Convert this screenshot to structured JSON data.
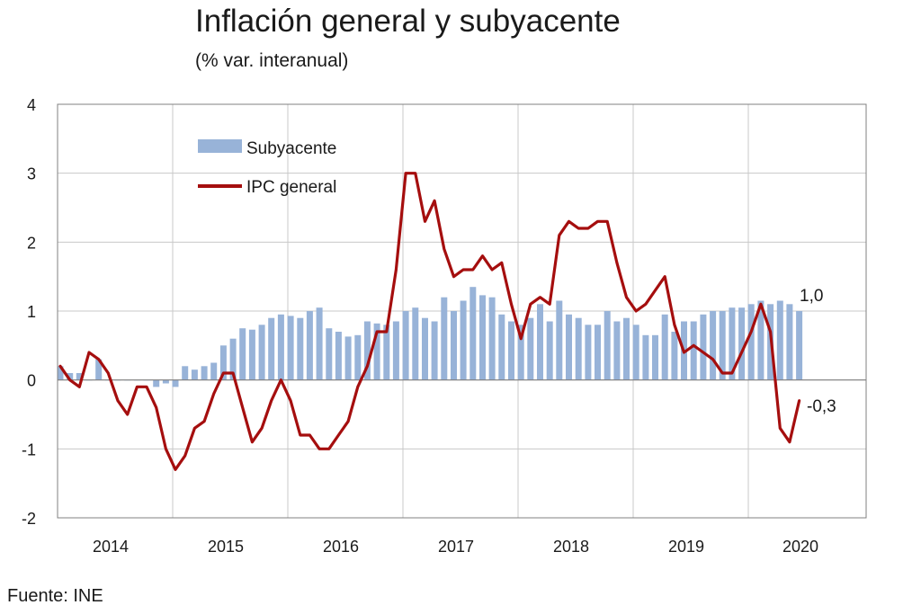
{
  "colors": {
    "bar": "#98b3d8",
    "line": "#a50e0e",
    "grid": "#c8c8c8",
    "axis": "#808080"
  },
  "chart_data": {
    "type": "bar+line",
    "title": "Inflación general y subyacente",
    "subtitle": "(% var. interanual)",
    "source": "Fuente: INE",
    "ylim": [
      -2,
      4
    ],
    "y_ticks": [
      "4",
      "3",
      "2",
      "1",
      "0",
      "-1",
      "-2"
    ],
    "x_tick_labels": [
      "2014",
      "2015",
      "2016",
      "2017",
      "2018",
      "2019",
      "2020"
    ],
    "grid": true,
    "legend_position": "top-left inside",
    "legend": {
      "bar_label": "Subyacente",
      "line_label": "IPC general"
    },
    "end_labels": {
      "bar": "1,0",
      "line": "-0,3"
    },
    "series": [
      {
        "name": "Subyacente",
        "type": "bar",
        "values": [
          0.2,
          0.1,
          0.1,
          0.0,
          0.3,
          0.0,
          0.0,
          0.0,
          0.0,
          0.0,
          -0.1,
          -0.05,
          -0.1,
          0.2,
          0.15,
          0.2,
          0.25,
          0.5,
          0.6,
          0.75,
          0.73,
          0.8,
          0.9,
          0.95,
          0.93,
          0.9,
          1.0,
          1.05,
          0.75,
          0.7,
          0.63,
          0.65,
          0.85,
          0.82,
          0.8,
          0.85,
          1.0,
          1.05,
          0.9,
          0.85,
          1.2,
          1.0,
          1.15,
          1.35,
          1.23,
          1.2,
          0.95,
          0.85,
          0.8,
          0.9,
          1.1,
          0.85,
          1.15,
          0.95,
          0.9,
          0.8,
          0.8,
          1.0,
          0.85,
          0.9,
          0.8,
          0.65,
          0.65,
          0.95,
          0.7,
          0.85,
          0.85,
          0.95,
          1.0,
          1.0,
          1.05,
          1.05,
          1.1,
          1.15,
          1.1,
          1.15,
          1.1,
          1.0
        ]
      },
      {
        "name": "IPC general",
        "type": "line",
        "values": [
          0.2,
          0.0,
          -0.1,
          0.4,
          0.3,
          0.1,
          -0.3,
          -0.5,
          -0.1,
          -0.1,
          -0.4,
          -1.0,
          -1.3,
          -1.1,
          -0.7,
          -0.6,
          -0.2,
          0.1,
          0.1,
          -0.4,
          -0.9,
          -0.7,
          -0.3,
          0.0,
          -0.3,
          -0.8,
          -0.8,
          -1.0,
          -1.0,
          -0.8,
          -0.6,
          -0.1,
          0.2,
          0.7,
          0.7,
          1.6,
          3.0,
          3.0,
          2.3,
          2.6,
          1.9,
          1.5,
          1.6,
          1.6,
          1.8,
          1.6,
          1.7,
          1.1,
          0.6,
          1.1,
          1.2,
          1.1,
          2.1,
          2.3,
          2.2,
          2.2,
          2.3,
          2.3,
          1.7,
          1.2,
          1.0,
          1.1,
          1.3,
          1.5,
          0.8,
          0.4,
          0.5,
          0.4,
          0.3,
          0.1,
          0.1,
          0.4,
          0.7,
          1.1,
          0.7,
          -0.7,
          -0.9,
          -0.3
        ]
      }
    ]
  }
}
